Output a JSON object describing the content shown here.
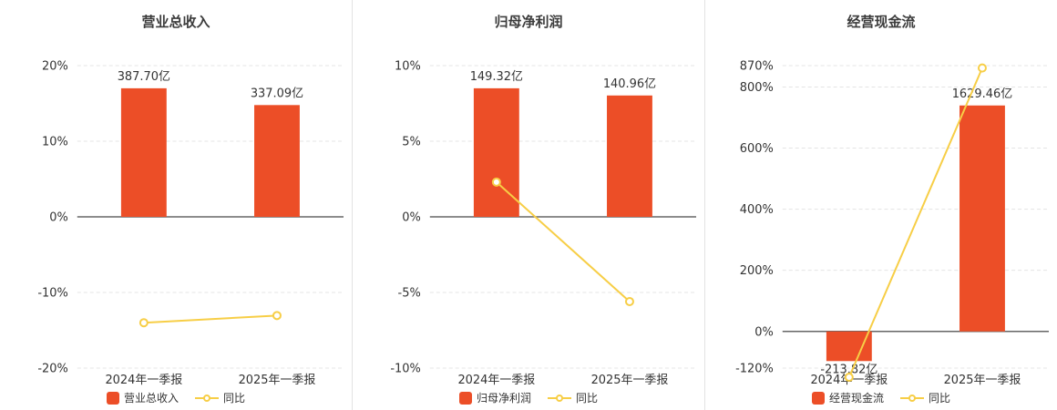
{
  "page": {
    "background": "#ffffff"
  },
  "chart_data": [
    {
      "type": "bar",
      "title": "营业总收入",
      "categories": [
        "2024年一季报",
        "2025年一季报"
      ],
      "bar_series": {
        "name": "营业总收入",
        "unit": "亿",
        "values": [
          387.7,
          337.09
        ],
        "labels": [
          "387.70亿",
          "337.09亿"
        ],
        "color": "#ec4e27"
      },
      "line_series": {
        "name": "同比",
        "unit": "%",
        "values": [
          -14.0,
          -13.05
        ],
        "color": "#f7ce46"
      },
      "y_axis": {
        "min": -20,
        "max": 20,
        "tick_values": [
          20,
          10,
          0,
          -10,
          -20
        ],
        "tick_labels": [
          "20%",
          "10%",
          "0%",
          "-10%",
          "-20%"
        ]
      },
      "legend": [
        "营业总收入",
        "同比"
      ],
      "grid": true,
      "legend_position": "bottom"
    },
    {
      "type": "bar",
      "title": "归母净利润",
      "categories": [
        "2024年一季报",
        "2025年一季报"
      ],
      "bar_series": {
        "name": "归母净利润",
        "unit": "亿",
        "values": [
          149.32,
          140.96
        ],
        "labels": [
          "149.32亿",
          "140.96亿"
        ],
        "color": "#ec4e27"
      },
      "line_series": {
        "name": "同比",
        "unit": "%",
        "values": [
          2.3,
          -5.6
        ],
        "color": "#f7ce46"
      },
      "y_axis": {
        "min": -10,
        "max": 10,
        "tick_values": [
          10,
          5,
          0,
          -5,
          -10
        ],
        "tick_labels": [
          "10%",
          "5%",
          "0%",
          "-5%",
          "-10%"
        ]
      },
      "legend": [
        "归母净利润",
        "同比"
      ],
      "grid": true,
      "legend_position": "bottom"
    },
    {
      "type": "bar",
      "title": "经营现金流",
      "categories": [
        "2024年一季报",
        "2025年一季报"
      ],
      "bar_series": {
        "name": "经营现金流",
        "unit": "亿",
        "values": [
          -213.82,
          1629.46
        ],
        "labels": [
          "-213.82亿",
          "1629.46亿"
        ],
        "color": "#ec4e27"
      },
      "line_series": {
        "name": "同比",
        "unit": "%",
        "values": [
          -150,
          862.1
        ],
        "color": "#f7ce46"
      },
      "y_axis": {
        "min": -120,
        "max": 870,
        "tick_values": [
          870,
          800,
          600,
          400,
          200,
          0,
          -120
        ],
        "tick_labels": [
          "870%",
          "800%",
          "600%",
          "400%",
          "200%",
          "0%",
          "-120%"
        ]
      },
      "legend": [
        "经营现金流",
        "同比"
      ],
      "grid": true,
      "legend_position": "bottom"
    }
  ],
  "colors": {
    "bar": "#ec4e27",
    "line": "#f7ce46",
    "zero_axis": "#666666",
    "grid_line": "#e4e4e4",
    "text": "#333333"
  }
}
